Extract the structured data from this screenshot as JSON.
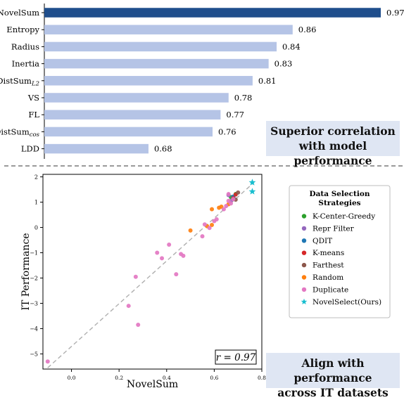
{
  "chart_data": [
    {
      "type": "bar",
      "orientation": "horizontal",
      "categories": [
        "NovelSum",
        "Entropy",
        "Radius",
        "Inertia",
        "DistSum_L2",
        "VS",
        "FL",
        "DistSum_cos",
        "LDD",
        "..."
      ],
      "category_labels": [
        {
          "main": "NovelSum",
          "sub": ""
        },
        {
          "main": "Entropy",
          "sub": ""
        },
        {
          "main": "Radius",
          "sub": ""
        },
        {
          "main": "Inertia",
          "sub": ""
        },
        {
          "main": "DistSum",
          "sub": "L2"
        },
        {
          "main": "VS",
          "sub": ""
        },
        {
          "main": "FL",
          "sub": ""
        },
        {
          "main": "DistSum",
          "sub": "cos"
        },
        {
          "main": "LDD",
          "sub": ""
        },
        {
          "main": "...",
          "sub": ""
        }
      ],
      "values": [
        0.97,
        0.86,
        0.84,
        0.83,
        0.81,
        0.78,
        0.77,
        0.76,
        0.68,
        null
      ],
      "value_labels": [
        "0.97",
        "0.86",
        "0.84",
        "0.83",
        "0.81",
        "0.78",
        "0.77",
        "0.76",
        "0.68",
        ""
      ],
      "xlim": [
        0.55,
        0.97
      ],
      "colors": {
        "highlight": "#1f4e8c",
        "default": "#b5c4e6"
      }
    },
    {
      "type": "scatter",
      "xlabel": "NovelSum",
      "ylabel": "IT Performance",
      "xlim": [
        -0.12,
        0.8
      ],
      "ylim": [
        -5.6,
        2.1
      ],
      "xticks": [
        0.0,
        0.2,
        0.4,
        0.6,
        0.8
      ],
      "xtick_labels": [
        "0.0",
        "0.2",
        "0.4",
        "0.6",
        "0.8"
      ],
      "yticks": [
        2,
        1,
        0,
        -1,
        -2,
        -3,
        -4,
        -5
      ],
      "ytick_labels": [
        "2",
        "1",
        "0",
        "−1",
        "−2",
        "−3",
        "−4",
        "−5"
      ],
      "annotation": "r = 0.97",
      "trendline": {
        "x": [
          -0.1,
          0.76
        ],
        "y": [
          -5.55,
          1.72
        ]
      },
      "legend_title_lines": [
        "Data Selection",
        "Strategies"
      ],
      "series": [
        {
          "name": "K-Center-Greedy",
          "color": "#2ca02c",
          "marker": "circle",
          "points": [
            [
              0.67,
              1.2
            ],
            [
              0.69,
              1.32
            ]
          ]
        },
        {
          "name": "Repr Filter",
          "color": "#9467bd",
          "marker": "circle",
          "points": [
            [
              0.66,
              1.28
            ],
            [
              0.67,
              1.05
            ],
            [
              0.68,
              1.18
            ]
          ]
        },
        {
          "name": "QDIT",
          "color": "#1f77b4",
          "marker": "circle",
          "points": [
            [
              0.68,
              1.22
            ]
          ]
        },
        {
          "name": "K-means",
          "color": "#d62728",
          "marker": "circle",
          "points": [
            [
              0.69,
              1.3
            ],
            [
              0.68,
              1.15
            ]
          ]
        },
        {
          "name": "Farthest",
          "color": "#8c564b",
          "marker": "circle",
          "points": [
            [
              0.7,
              1.38
            ],
            [
              0.69,
              1.1
            ]
          ]
        },
        {
          "name": "Random",
          "color": "#ff7f0e",
          "marker": "circle",
          "points": [
            [
              0.5,
              -0.12
            ],
            [
              0.57,
              0.05
            ],
            [
              0.59,
              0.1
            ],
            [
              0.59,
              0.72
            ],
            [
              0.62,
              0.78
            ],
            [
              0.63,
              0.82
            ],
            [
              0.66,
              0.92
            ]
          ]
        },
        {
          "name": "Duplicate",
          "color": "#e377c2",
          "marker": "circle",
          "points": [
            [
              -0.1,
              -5.3
            ],
            [
              0.24,
              -3.1
            ],
            [
              0.27,
              -1.95
            ],
            [
              0.28,
              -3.85
            ],
            [
              0.36,
              -1.0
            ],
            [
              0.38,
              -1.22
            ],
            [
              0.41,
              -0.68
            ],
            [
              0.44,
              -1.85
            ],
            [
              0.46,
              -1.05
            ],
            [
              0.47,
              -1.12
            ],
            [
              0.55,
              -0.35
            ],
            [
              0.56,
              0.12
            ],
            [
              0.58,
              -0.02
            ],
            [
              0.6,
              0.25
            ],
            [
              0.61,
              0.32
            ],
            [
              0.64,
              0.72
            ],
            [
              0.65,
              0.85
            ],
            [
              0.66,
              1.05
            ],
            [
              0.67,
              0.95
            ],
            [
              0.68,
              1.12
            ],
            [
              0.66,
              1.32
            ]
          ]
        },
        {
          "name": "NovelSelect(Ours)",
          "color": "#17becf",
          "marker": "star",
          "points": [
            [
              0.76,
              1.78
            ],
            [
              0.76,
              1.42
            ]
          ]
        }
      ]
    }
  ],
  "callouts": {
    "top": [
      "Superior correlation",
      "with model performance"
    ],
    "bottom": [
      "Align with performance",
      "across IT datasets"
    ]
  }
}
